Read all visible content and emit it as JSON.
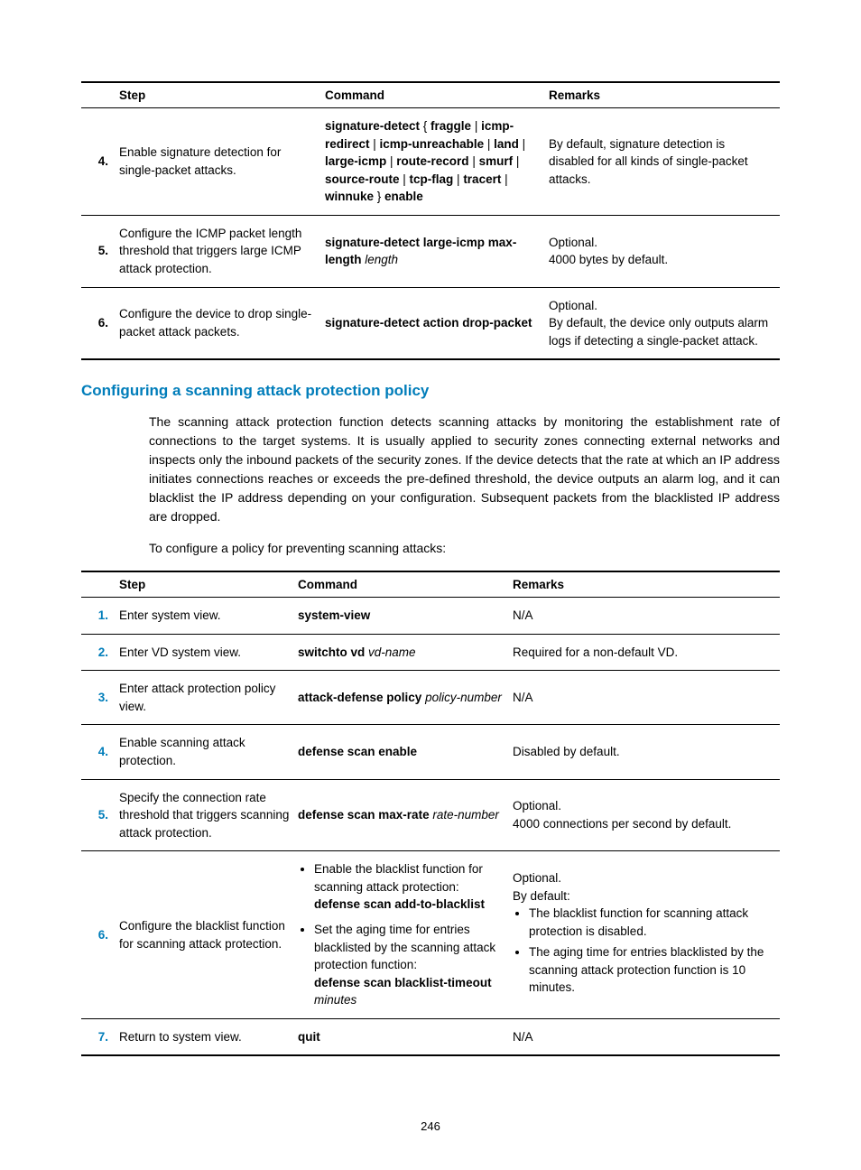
{
  "colors": {
    "heading": "#007dba",
    "numberBlue": "#007dba",
    "text": "#000000",
    "rule": "#000000",
    "background": "#ffffff"
  },
  "typography": {
    "body_fontsize": 14,
    "table_fontsize": 13.5,
    "heading_fontsize": 17,
    "line_height": 1.5,
    "font_family": "Arial"
  },
  "table1": {
    "headers": {
      "step": "Step",
      "command": "Command",
      "remarks": "Remarks"
    },
    "rows": [
      {
        "num": "4.",
        "numColor": "#000000",
        "step": "Enable signature detection for single-packet attacks.",
        "cmd": {
          "segments": [
            {
              "t": "signature-detect",
              "b": true
            },
            {
              "t": " { "
            },
            {
              "t": "fraggle",
              "b": true
            },
            {
              "t": " | "
            },
            {
              "t": "icmp-redirect",
              "b": true
            },
            {
              "t": " | "
            },
            {
              "t": "icmp-unreachable",
              "b": true
            },
            {
              "t": " | "
            },
            {
              "t": "land",
              "b": true
            },
            {
              "t": " | "
            },
            {
              "t": "large-icmp",
              "b": true
            },
            {
              "t": " | "
            },
            {
              "t": "route-record",
              "b": true
            },
            {
              "t": " | "
            },
            {
              "t": "smurf",
              "b": true
            },
            {
              "t": " | "
            },
            {
              "t": "source-route",
              "b": true
            },
            {
              "t": " | "
            },
            {
              "t": "tcp-flag",
              "b": true
            },
            {
              "t": " | "
            },
            {
              "t": "tracert",
              "b": true
            },
            {
              "t": " | "
            },
            {
              "t": "winnuke",
              "b": true
            },
            {
              "t": " } "
            },
            {
              "t": "enable",
              "b": true
            }
          ]
        },
        "remarks": {
          "lines": [
            "By default, signature detection is disabled for all kinds of single-packet attacks."
          ]
        }
      },
      {
        "num": "5.",
        "numColor": "#000000",
        "step": "Configure the ICMP packet length threshold that triggers large ICMP attack protection.",
        "cmd": {
          "segments": [
            {
              "t": "signature-detect large-icmp max-length",
              "b": true
            },
            {
              "t": " "
            },
            {
              "t": "length",
              "i": true
            }
          ]
        },
        "remarks": {
          "lines": [
            "Optional.",
            "4000 bytes by default."
          ]
        }
      },
      {
        "num": "6.",
        "numColor": "#000000",
        "step": "Configure the device to drop single-packet attack packets.",
        "cmd": {
          "segments": [
            {
              "t": "signature-detect action drop-packet",
              "b": true
            }
          ]
        },
        "remarks": {
          "lines": [
            "Optional.",
            "By default, the device only outputs alarm logs if detecting a single-packet attack."
          ]
        }
      }
    ]
  },
  "section_heading": "Configuring a scanning attack protection policy",
  "para1": "The scanning attack protection function detects scanning attacks by monitoring the establishment rate of connections to the target systems. It is usually applied to security zones connecting external networks and inspects only the inbound packets of the security zones. If the device detects that the rate at which an IP address initiates connections reaches or exceeds the pre-defined threshold, the device outputs an alarm log, and it can blacklist the IP address depending on your configuration. Subsequent packets from the blacklisted IP address are dropped.",
  "para2": "To configure a policy for preventing scanning attacks:",
  "table2": {
    "headers": {
      "step": "Step",
      "command": "Command",
      "remarks": "Remarks"
    },
    "rows": [
      {
        "num": "1.",
        "numColor": "#007dba",
        "step": "Enter system view.",
        "cmd": {
          "segments": [
            {
              "t": "system-view",
              "b": true
            }
          ]
        },
        "remarks": {
          "lines": [
            "N/A"
          ]
        }
      },
      {
        "num": "2.",
        "numColor": "#007dba",
        "step": "Enter VD system view.",
        "cmd": {
          "segments": [
            {
              "t": "switchto vd",
              "b": true
            },
            {
              "t": " "
            },
            {
              "t": "vd-name",
              "i": true
            }
          ]
        },
        "remarks": {
          "lines": [
            "Required for a non-default VD."
          ]
        }
      },
      {
        "num": "3.",
        "numColor": "#007dba",
        "step": "Enter attack protection policy view.",
        "cmd": {
          "segments": [
            {
              "t": "attack-defense policy",
              "b": true
            },
            {
              "t": " "
            },
            {
              "t": "policy-number",
              "i": true
            }
          ]
        },
        "remarks": {
          "lines": [
            "N/A"
          ]
        }
      },
      {
        "num": "4.",
        "numColor": "#007dba",
        "step": "Enable scanning attack protection.",
        "cmd": {
          "segments": [
            {
              "t": "defense scan enable",
              "b": true
            }
          ]
        },
        "remarks": {
          "lines": [
            "Disabled by default."
          ]
        }
      },
      {
        "num": "5.",
        "numColor": "#007dba",
        "step": "Specify the connection rate threshold that triggers scanning attack protection.",
        "cmd": {
          "segments": [
            {
              "t": "defense scan max-rate",
              "b": true
            },
            {
              "t": " "
            },
            {
              "t": "rate-number",
              "i": true
            }
          ]
        },
        "remarks": {
          "lines": [
            "Optional.",
            "4000 connections per second by default."
          ]
        }
      },
      {
        "num": "6.",
        "numColor": "#007dba",
        "step": "Configure the blacklist function for scanning attack protection.",
        "cmd": {
          "bullets": [
            {
              "intro": "Enable the blacklist function for scanning attack protection:",
              "segments": [
                {
                  "t": "defense scan add-to-blacklist",
                  "b": true
                }
              ]
            },
            {
              "intro": "Set the aging time for entries blacklisted by the scanning attack protection function:",
              "segments": [
                {
                  "t": "defense scan blacklist-timeout",
                  "b": true
                },
                {
                  "t": " "
                },
                {
                  "t": "minutes",
                  "i": true
                }
              ]
            }
          ]
        },
        "remarks": {
          "lines": [
            "Optional.",
            "By default:"
          ],
          "bullets": [
            "The blacklist function for scanning attack protection is disabled.",
            "The aging time for entries blacklisted by the scanning attack protection function is 10 minutes."
          ]
        }
      },
      {
        "num": "7.",
        "numColor": "#007dba",
        "step": "Return to system view.",
        "cmd": {
          "segments": [
            {
              "t": "quit",
              "b": true
            }
          ]
        },
        "remarks": {
          "lines": [
            "N/A"
          ]
        }
      }
    ]
  },
  "page_number": "246"
}
